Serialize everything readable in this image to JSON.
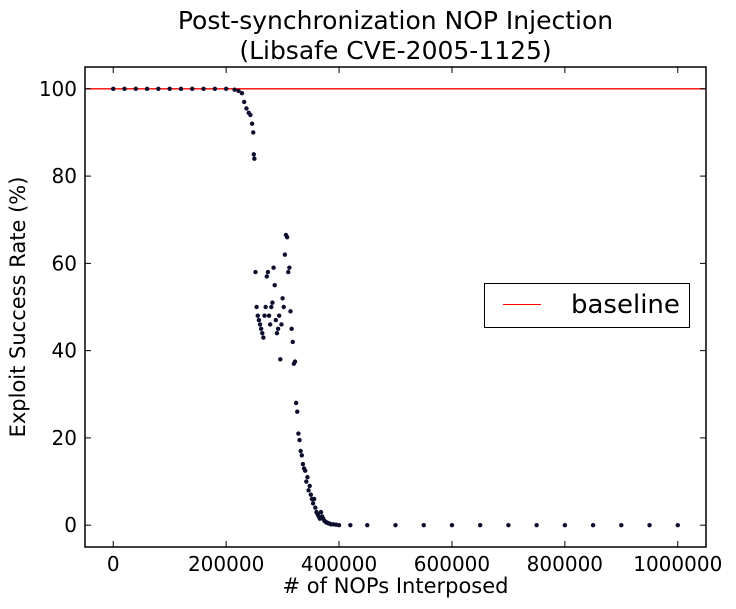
{
  "chart_data": {
    "type": "scatter",
    "title": [
      "Post-synchronization NOP Injection",
      "(Libsafe CVE-2005-1125)"
    ],
    "xlabel": "# of NOPs Interposed",
    "ylabel": "Exploit Success Rate (%)",
    "xlim": [
      -50000,
      1050000
    ],
    "ylim": [
      -5,
      105
    ],
    "xticks": [
      0,
      200000,
      400000,
      600000,
      800000,
      1000000
    ],
    "yticks": [
      0,
      20,
      40,
      60,
      80,
      100
    ],
    "grid": false,
    "legend": {
      "position": "center-right",
      "entries": [
        {
          "label": "baseline",
          "color": "#ff0000",
          "kind": "line"
        }
      ]
    },
    "series": [
      {
        "name": "baseline",
        "kind": "hline",
        "y": 100,
        "color": "#ff0000"
      },
      {
        "kind": "scatter",
        "color": "#0d0d2e",
        "x": [
          0,
          20000,
          40000,
          60000,
          80000,
          100000,
          120000,
          140000,
          160000,
          180000,
          200000,
          215000,
          222000,
          228000,
          232000,
          236000,
          240000,
          243000,
          246000,
          248000,
          249000,
          250000,
          252000,
          254000,
          256000,
          258000,
          260000,
          262000,
          264000,
          266000,
          268000,
          270000,
          272000,
          274000,
          276000,
          278000,
          280000,
          282000,
          284000,
          286000,
          288000,
          290000,
          292000,
          294000,
          296000,
          298000,
          300000,
          302000,
          304000,
          306000,
          308000,
          310000,
          312000,
          314000,
          316000,
          318000,
          320000,
          322000,
          324000,
          326000,
          328000,
          330000,
          332000,
          334000,
          336000,
          338000,
          340000,
          342000,
          344000,
          346000,
          348000,
          350000,
          352000,
          354000,
          356000,
          358000,
          360000,
          362000,
          364000,
          366000,
          368000,
          370000,
          372000,
          374000,
          376000,
          378000,
          380000,
          382000,
          384000,
          386000,
          390000,
          395000,
          400000,
          420000,
          450000,
          500000,
          550000,
          600000,
          650000,
          700000,
          750000,
          800000,
          850000,
          900000,
          950000,
          1000000
        ],
        "y": [
          100,
          100,
          100,
          100,
          100,
          100,
          100,
          100,
          100,
          100,
          100,
          99.8,
          99.5,
          99,
          97,
          95.5,
          94.5,
          94,
          92,
          90,
          85,
          84,
          58,
          50,
          48,
          47,
          46,
          45,
          44,
          43,
          48,
          50,
          57,
          58,
          48,
          46,
          50,
          51,
          59,
          55,
          47,
          44,
          45,
          48,
          38,
          46,
          52,
          50,
          62,
          66.5,
          66,
          58,
          59,
          49,
          45,
          42,
          37,
          37.5,
          28,
          26,
          21,
          19.5,
          17,
          16,
          14,
          13,
          12.5,
          10,
          11,
          8,
          9,
          7,
          6,
          5,
          6,
          4,
          3,
          2.5,
          2,
          1.5,
          3,
          2,
          1.5,
          1,
          0.8,
          0.6,
          0.5,
          0.4,
          0.3,
          0.2,
          0.2,
          0.1,
          0,
          0,
          0,
          0,
          0,
          0,
          0,
          0,
          0,
          0,
          0,
          0,
          0,
          0
        ]
      }
    ]
  }
}
